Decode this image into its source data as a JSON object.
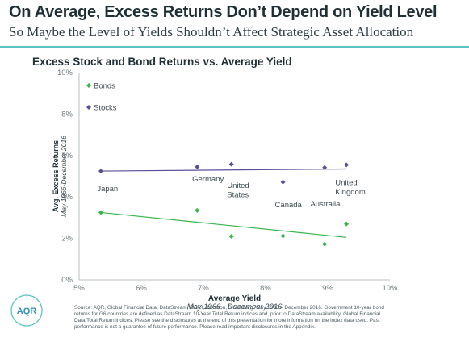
{
  "header": {
    "title": "On Average, Excess Returns Don’t Depend on Yield Level",
    "subtitle": "So Maybe the Level of Yields Shouldn’t Affect Strategic Asset Allocation"
  },
  "logo": {
    "text": "AQR"
  },
  "colors": {
    "accent_rule": "#5bc4be",
    "bonds": "#39b54a",
    "stocks": "#5a4f9a",
    "text": "#1f2f36"
  },
  "chart_data": {
    "type": "scatter",
    "title": "Excess Stock and Bond Returns vs. Average Yield",
    "xlabel": "Average Yield",
    "xlabel_sub": "May 1966 - December 2016",
    "ylabel": "Avg. Excess Returns",
    "ylabel_sub": "May 1966-December 2016",
    "xlim": [
      5,
      10
    ],
    "ylim": [
      0,
      10
    ],
    "x_ticks": [
      "5%",
      "6%",
      "7%",
      "8%",
      "9%",
      "10%"
    ],
    "y_ticks": [
      "0%",
      "2%",
      "4%",
      "6%",
      "8%",
      "10%"
    ],
    "grid": false,
    "legend_position": "top-left",
    "series": [
      {
        "name": "Bonds",
        "color": "#39b54a",
        "x": [
          5.35,
          6.9,
          7.45,
          8.28,
          8.95,
          9.3
        ],
        "y": [
          3.25,
          3.35,
          2.1,
          2.12,
          1.72,
          2.7
        ],
        "trend": {
          "x": [
            5.35,
            9.3
          ],
          "y": [
            3.25,
            2.05
          ]
        }
      },
      {
        "name": "Stocks",
        "color": "#5a4f9a",
        "x": [
          5.35,
          6.9,
          7.45,
          8.28,
          8.95,
          9.3
        ],
        "y": [
          5.25,
          5.45,
          5.58,
          4.72,
          5.42,
          5.55
        ],
        "trend": {
          "x": [
            5.35,
            9.3
          ],
          "y": [
            5.25,
            5.35
          ]
        }
      }
    ],
    "annotations": [
      {
        "text": "Japan",
        "x": 5.29,
        "y": 4.28
      },
      {
        "text": "Germany",
        "x": 6.82,
        "y": 4.75
      },
      {
        "text": "United",
        "x": 7.38,
        "y": 4.43
      },
      {
        "text": "States",
        "x": 7.38,
        "y": 3.98
      },
      {
        "text": "Canada",
        "x": 8.15,
        "y": 3.5
      },
      {
        "text": "Australia",
        "x": 8.72,
        "y": 3.55
      },
      {
        "text": "United",
        "x": 9.12,
        "y": 4.58
      },
      {
        "text": "Kingdom",
        "x": 9.12,
        "y": 4.13
      }
    ]
  },
  "footer": {
    "source_lines": [
      "Source: AQR, Global Financial Data, DataStream, MSCI, Ibbotson, Bloomberg. May 1966 – December 2016. Government 10-year bond",
      "returns for G6 countries are defined as DataStream 10-Year Total Return indices and, prior to DataStream availability, Global Financial",
      "Data Total Return indices. Please see the disclosures at the end of this presentation for more information on the index data used. Past",
      "performance is not a guarantee of future performance. Please read important disclosures in the Appendix."
    ]
  }
}
